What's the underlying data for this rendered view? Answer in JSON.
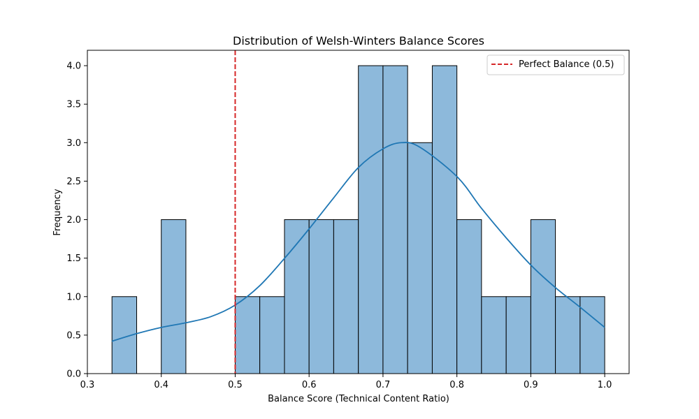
{
  "chart_data": {
    "type": "bar",
    "title": "Distribution of Welsh-Winters Balance Scores",
    "xlabel": "Balance Score (Technical Content Ratio)",
    "ylabel": "Frequency",
    "xlim": [
      0.3,
      1.033
    ],
    "ylim": [
      0,
      4.2
    ],
    "xticks": [
      0.3,
      0.4,
      0.5,
      0.6,
      0.7,
      0.8,
      0.9,
      1.0
    ],
    "xtick_labels": [
      "0.3",
      "0.4",
      "0.5",
      "0.6",
      "0.7",
      "0.8",
      "0.9",
      "1.0"
    ],
    "yticks": [
      0.0,
      0.5,
      1.0,
      1.5,
      2.0,
      2.5,
      3.0,
      3.5,
      4.0
    ],
    "ytick_labels": [
      "0.0",
      "0.5",
      "1.0",
      "1.5",
      "2.0",
      "2.5",
      "3.0",
      "3.5",
      "4.0"
    ],
    "grid": false,
    "bins": {
      "start": 0.3333,
      "end": 1.0,
      "edges": [
        0.3333,
        0.3667,
        0.4,
        0.4333,
        0.4667,
        0.5,
        0.5333,
        0.5667,
        0.6,
        0.6333,
        0.6667,
        0.7,
        0.7333,
        0.7667,
        0.8,
        0.8333,
        0.8667,
        0.9,
        0.9333,
        0.9667,
        1.0
      ],
      "counts": [
        1,
        0,
        2,
        0,
        0,
        1,
        1,
        2,
        2,
        2,
        4,
        4,
        3,
        4,
        2,
        1,
        1,
        2,
        1,
        1
      ]
    },
    "bar_color": "#8db9db",
    "bar_edge_color": "#000000",
    "kde": {
      "color": "#1f77b4",
      "x": [
        0.333,
        0.367,
        0.4,
        0.433,
        0.467,
        0.5,
        0.533,
        0.567,
        0.6,
        0.633,
        0.667,
        0.7,
        0.725,
        0.75,
        0.8,
        0.833,
        0.867,
        0.9,
        0.933,
        0.967,
        1.0
      ],
      "y": [
        0.42,
        0.52,
        0.6,
        0.66,
        0.74,
        0.89,
        1.14,
        1.5,
        1.88,
        2.28,
        2.68,
        2.92,
        3.0,
        2.94,
        2.56,
        2.15,
        1.76,
        1.41,
        1.12,
        0.86,
        0.6
      ]
    },
    "reference_line": {
      "x": 0.5,
      "color": "#d62728",
      "style": "dashed",
      "label": "Perfect Balance (0.5)"
    },
    "legend": {
      "position": "top-right",
      "entries": [
        "Perfect Balance (0.5)"
      ]
    }
  }
}
